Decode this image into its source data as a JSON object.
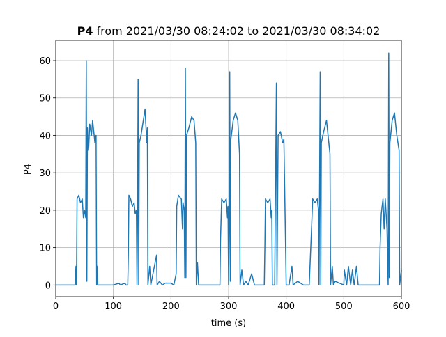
{
  "chart_data": {
    "type": "line",
    "title_bold": "P4",
    "title": "from 2021/03/30 08:24:02 to 2021/03/30 08:34:02",
    "xlabel": "time (s)",
    "ylabel": "P4",
    "color": "#1f77b4",
    "grid": true,
    "xlim": [
      0,
      600
    ],
    "xticks": [
      0,
      100,
      200,
      300,
      400,
      500,
      600
    ],
    "ylim": [
      -3.1,
      65.4
    ],
    "yticks": [
      0,
      10,
      20,
      30,
      40,
      50,
      60
    ],
    "x": [
      0,
      34,
      35,
      36,
      37,
      40,
      43,
      46,
      48,
      50,
      52,
      53,
      54,
      55,
      57,
      59,
      62,
      64,
      66,
      68,
      70,
      71,
      72,
      73,
      100,
      110,
      112,
      120,
      122,
      125,
      126,
      127,
      130,
      133,
      136,
      138,
      140,
      141,
      142,
      143,
      144,
      145,
      148,
      152,
      155,
      158,
      159,
      160,
      163,
      165,
      175,
      176,
      180,
      185,
      190,
      200,
      205,
      209,
      210,
      213,
      218,
      220,
      221,
      223,
      224,
      225,
      226,
      227,
      231,
      236,
      240,
      243,
      244,
      246,
      248,
      280,
      285,
      286,
      288,
      292,
      296,
      298,
      299,
      300,
      301,
      302,
      303,
      304,
      308,
      312,
      316,
      319,
      320,
      323,
      326,
      330,
      334,
      340,
      345,
      355,
      362,
      363,
      364,
      368,
      372,
      374,
      375,
      376,
      380,
      383,
      384,
      386,
      390,
      394,
      396,
      400,
      405,
      410,
      412,
      420,
      430,
      440,
      444,
      446,
      450,
      454,
      456,
      457,
      459,
      460,
      461,
      465,
      470,
      474,
      476,
      477,
      480,
      482,
      485,
      500,
      501,
      505,
      508,
      512,
      515,
      518,
      522,
      525,
      535,
      562,
      563,
      565,
      568,
      570,
      572,
      575,
      577,
      578,
      579,
      580,
      584,
      588,
      592,
      596,
      597,
      600
    ],
    "values": [
      0,
      0,
      5,
      0,
      23,
      24,
      22,
      23,
      18,
      20,
      18,
      60,
      1,
      42,
      36,
      43,
      40,
      44,
      41,
      38,
      40,
      0,
      5,
      0,
      0,
      0.5,
      0,
      0.5,
      0,
      0,
      8,
      24,
      23,
      21,
      22,
      19,
      20,
      0,
      19,
      55,
      0,
      38,
      40,
      44,
      47,
      38,
      42,
      0,
      5,
      0,
      8,
      0,
      1,
      0,
      0.5,
      0.5,
      0,
      3,
      21,
      24,
      23,
      15,
      22,
      20,
      2,
      58,
      2,
      40,
      42,
      45,
      44,
      38,
      0,
      6,
      0,
      0,
      0,
      12,
      23,
      22,
      23,
      18,
      21,
      0,
      15,
      57,
      1,
      39,
      44,
      46,
      44,
      35,
      0,
      4,
      0,
      1,
      0,
      3,
      0,
      0,
      0,
      10,
      23,
      22,
      23,
      18,
      20,
      0,
      0,
      54,
      0,
      40,
      41,
      38,
      39,
      0,
      0,
      5,
      0,
      1,
      0,
      0,
      15,
      23,
      22,
      23,
      20,
      0,
      57,
      0,
      38,
      41,
      44,
      38,
      35,
      0,
      5,
      0,
      1,
      0,
      4,
      0,
      5,
      0,
      4,
      0,
      5,
      0,
      0,
      0,
      10,
      19,
      23,
      15,
      23,
      15,
      0,
      62,
      2,
      38,
      44,
      46,
      40,
      36,
      0,
      4
    ]
  }
}
